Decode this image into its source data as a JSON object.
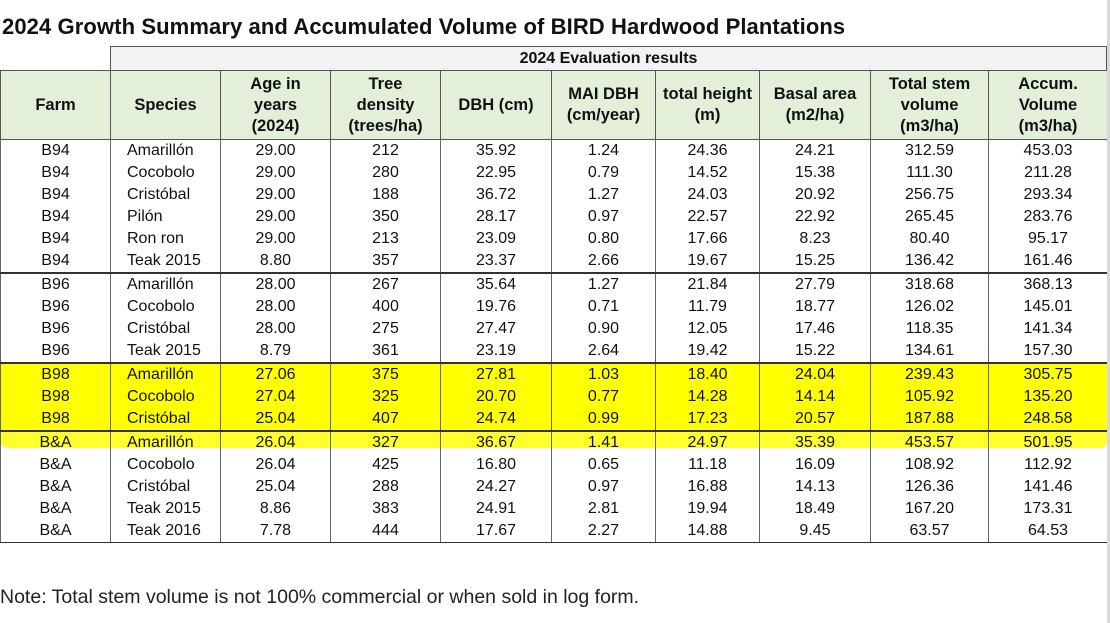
{
  "title": "2024 Growth Summary and Accumulated Volume of BIRD Hardwood Plantations",
  "evaluation_title": "2024 Evaluation results",
  "headers": [
    [
      "Farm"
    ],
    [
      "Species"
    ],
    [
      "Age in",
      "years",
      "(2024)"
    ],
    [
      "Tree",
      "density",
      "(trees/ha)"
    ],
    [
      "DBH (cm)"
    ],
    [
      "MAI DBH",
      "(cm/year)"
    ],
    [
      "total height",
      "(m)"
    ],
    [
      "Basal area",
      "(m2/ha)"
    ],
    [
      "Total stem",
      "volume",
      "(m3/ha)"
    ],
    [
      "Accum.",
      "Volume",
      "(m3/ha)"
    ]
  ],
  "groups": [
    {
      "farm": "B94",
      "highlighted": false,
      "rows": [
        [
          "B94",
          "Amarillón",
          "29.00",
          "212",
          "35.92",
          "1.24",
          "24.36",
          "24.21",
          "312.59",
          "453.03"
        ],
        [
          "B94",
          "Cocobolo",
          "29.00",
          "280",
          "22.95",
          "0.79",
          "14.52",
          "15.38",
          "111.30",
          "211.28"
        ],
        [
          "B94",
          "Cristóbal",
          "29.00",
          "188",
          "36.72",
          "1.27",
          "24.03",
          "20.92",
          "256.75",
          "293.34"
        ],
        [
          "B94",
          "Pilón",
          "29.00",
          "350",
          "28.17",
          "0.97",
          "22.57",
          "22.92",
          "265.45",
          "283.76"
        ],
        [
          "B94",
          "Ron ron",
          "29.00",
          "213",
          "23.09",
          "0.80",
          "17.66",
          "8.23",
          "80.40",
          "95.17"
        ],
        [
          "B94",
          "Teak 2015",
          "8.80",
          "357",
          "23.37",
          "2.66",
          "19.67",
          "15.25",
          "136.42",
          "161.46"
        ]
      ]
    },
    {
      "farm": "B96",
      "highlighted": false,
      "rows": [
        [
          "B96",
          "Amarillón",
          "28.00",
          "267",
          "35.64",
          "1.27",
          "21.84",
          "27.79",
          "318.68",
          "368.13"
        ],
        [
          "B96",
          "Cocobolo",
          "28.00",
          "400",
          "19.76",
          "0.71",
          "11.79",
          "18.77",
          "126.02",
          "145.01"
        ],
        [
          "B96",
          "Cristóbal",
          "28.00",
          "275",
          "27.47",
          "0.90",
          "12.05",
          "17.46",
          "118.35",
          "141.34"
        ],
        [
          "B96",
          "Teak 2015",
          "8.79",
          "361",
          "23.19",
          "2.64",
          "19.42",
          "15.22",
          "134.61",
          "157.30"
        ]
      ]
    },
    {
      "farm": "B98",
      "highlighted": true,
      "rows": [
        [
          "B98",
          "Amarillón",
          "27.06",
          "375",
          "27.81",
          "1.03",
          "18.40",
          "24.04",
          "239.43",
          "305.75"
        ],
        [
          "B98",
          "Cocobolo",
          "27.04",
          "325",
          "20.70",
          "0.77",
          "14.28",
          "14.14",
          "105.92",
          "135.20"
        ],
        [
          "B98",
          "Cristóbal",
          "25.04",
          "407",
          "24.74",
          "0.99",
          "17.23",
          "20.57",
          "187.88",
          "248.58"
        ]
      ]
    },
    {
      "farm": "B&A",
      "highlighted": false,
      "rows": [
        [
          "B&A",
          "Amarillón",
          "26.04",
          "327",
          "36.67",
          "1.41",
          "24.97",
          "35.39",
          "453.57",
          "501.95"
        ],
        [
          "B&A",
          "Cocobolo",
          "26.04",
          "425",
          "16.80",
          "0.65",
          "11.18",
          "16.09",
          "108.92",
          "112.92"
        ],
        [
          "B&A",
          "Cristóbal",
          "25.04",
          "288",
          "24.27",
          "0.97",
          "16.88",
          "14.13",
          "126.36",
          "141.46"
        ],
        [
          "B&A",
          "Teak 2015",
          "8.86",
          "383",
          "24.91",
          "2.81",
          "19.94",
          "18.49",
          "167.20",
          "173.31"
        ],
        [
          "B&A",
          "Teak 2016",
          "7.78",
          "444",
          "17.67",
          "2.27",
          "14.88",
          "9.45",
          "63.57",
          "64.53"
        ]
      ]
    }
  ],
  "note": "Note: Total stem volume is not 100% commercial or when sold in log form.",
  "colors": {
    "header_bg": "#e3efd9",
    "highlight": "#ffff00",
    "eval_band": "#f2f2f2"
  }
}
